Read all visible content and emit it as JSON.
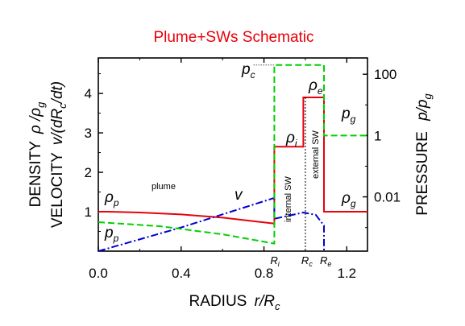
{
  "chart_data": {
    "type": "line",
    "title": "Plume+SWs Schematic",
    "title_color": "#e8000b",
    "xlabel": "RADIUS",
    "xlabel_italic": "r/R",
    "xlabel_sub": "c",
    "ylabel_left_line1": "DENSITY",
    "ylabel_left_line1_italic": "ρ /ρ",
    "ylabel_left_line1_sub": "g",
    "ylabel_left_line2": "VELOCITY",
    "ylabel_left_line2_italic": "v/(dR",
    "ylabel_left_line2_sub": "c",
    "ylabel_left_line2_tail": "/dt)",
    "ylabel_right": "PRESSURE",
    "ylabel_right_italic": "p/p",
    "ylabel_right_sub": "g",
    "xlim": [
      0.0,
      1.3
    ],
    "ylim_left": [
      0,
      4.9
    ],
    "ylim_right_log10": [
      -3.77,
      2.53
    ],
    "right_scale": "log",
    "xticks": [
      0.0,
      0.4,
      0.8,
      1.2
    ],
    "xtick_labels": [
      "0.0",
      "0.4",
      "0.8",
      "1.2"
    ],
    "yticks_left": [
      1,
      2,
      3,
      4
    ],
    "yticks_left_labels": [
      "1",
      "2",
      "3",
      "4"
    ],
    "yticks_right": [
      100,
      1,
      0.01
    ],
    "yticks_right_labels": [
      "100",
      "1",
      "0.01"
    ],
    "grid": false,
    "legend": "none",
    "series": [
      {
        "key": "density",
        "color": "#e8000b",
        "style": "solid",
        "axis": "left",
        "x": [
          0.0,
          0.05,
          0.2,
          0.4,
          0.6,
          0.85,
          0.85,
          0.99,
          0.99,
          1.09,
          1.09,
          1.3
        ],
        "y": [
          1.0,
          1.0,
          0.98,
          0.93,
          0.85,
          0.7,
          2.65,
          2.65,
          3.9,
          3.9,
          1.0,
          1.0
        ]
      },
      {
        "key": "velocity",
        "color": "#0000d0",
        "style": "dash-dot",
        "axis": "left",
        "x": [
          0.0,
          0.4,
          0.85,
          0.85,
          0.99,
          1.05,
          1.09,
          1.09
        ],
        "y": [
          0.0,
          0.6,
          1.35,
          0.82,
          0.98,
          0.92,
          0.65,
          0.0
        ]
      },
      {
        "key": "pressure",
        "color": "#00d000",
        "style": "dashed",
        "axis": "right",
        "x": [
          0.0,
          0.3,
          0.6,
          0.85,
          0.85,
          1.09,
          1.09,
          1.3
        ],
        "y": [
          0.0015,
          0.0011,
          0.0006,
          0.0003,
          200,
          200,
          1.0,
          1.0
        ]
      }
    ],
    "markers": [
      {
        "label_sym": "R",
        "label_sub": "i",
        "x": 0.85
      },
      {
        "label_sym": "R",
        "label_sub": "c",
        "x": 1.0
      },
      {
        "label_sym": "R",
        "label_sub": "e",
        "x": 1.09
      }
    ],
    "annotations": {
      "rho_p": {
        "sym": "ρ",
        "sub": "p"
      },
      "p_p": {
        "sym": "p",
        "sub": "p"
      },
      "p_c": {
        "sym": "p",
        "sub": "c"
      },
      "rho_e": {
        "sym": "ρ",
        "sub": "e"
      },
      "rho_i": {
        "sym": "ρ",
        "sub": "i"
      },
      "p_g": {
        "sym": "p",
        "sub": "g"
      },
      "rho_g": {
        "sym": "ρ",
        "sub": "g"
      },
      "v": {
        "sym": "v"
      },
      "plume": "plume",
      "internal_sw": "internal SW",
      "external_sw": "external SW"
    }
  }
}
